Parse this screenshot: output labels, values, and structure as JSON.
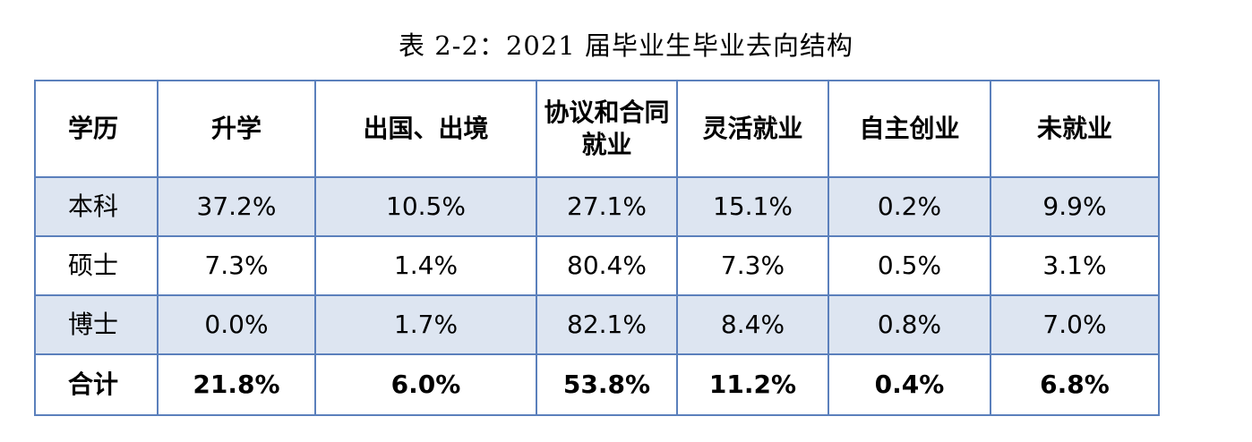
{
  "caption": "表 2-2：2021 届毕业生毕业去向结构",
  "columns": [
    "学历",
    "升学",
    "出国、出境",
    "协议和合同就业",
    "灵活就业",
    "自主创业",
    "未就业"
  ],
  "rows": [
    {
      "label": "本科",
      "values": [
        "37.2%",
        "10.5%",
        "27.1%",
        "15.1%",
        "0.2%",
        "9.9%"
      ]
    },
    {
      "label": "硕士",
      "values": [
        "7.3%",
        "1.4%",
        "80.4%",
        "7.3%",
        "0.5%",
        "3.1%"
      ]
    },
    {
      "label": "博士",
      "values": [
        "0.0%",
        "1.7%",
        "82.1%",
        "8.4%",
        "0.8%",
        "7.0%"
      ]
    },
    {
      "label": "合计",
      "values": [
        "21.8%",
        "6.0%",
        "53.8%",
        "11.2%",
        "0.4%",
        "6.8%"
      ]
    }
  ],
  "colors": {
    "border": "#5b80bc",
    "shaded_row": "#dde5f1"
  }
}
